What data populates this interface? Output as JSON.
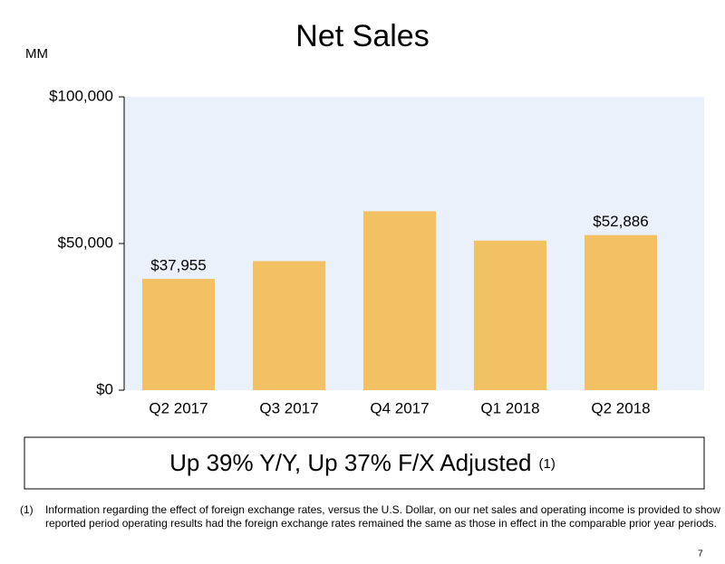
{
  "chart_data": {
    "type": "bar",
    "title": "Net Sales",
    "y_unit": "MM",
    "categories": [
      "Q2 2017",
      "Q3 2017",
      "Q4 2017",
      "Q1 2018",
      "Q2 2018"
    ],
    "values": [
      37955,
      44000,
      61000,
      51000,
      52886
    ],
    "value_labels": [
      "$37,955",
      null,
      null,
      null,
      "$52,886"
    ],
    "color": "#f1c164",
    "ylim": [
      0,
      100000
    ],
    "yticks": [
      {
        "value": 0,
        "label": "$0"
      },
      {
        "value": 50000,
        "label": "$50,000"
      },
      {
        "value": 100000,
        "label": "$100,000"
      }
    ],
    "callout": {
      "text": "Up 39% Y/Y, Up 37% F/X Adjusted",
      "note_ref": "(1)"
    },
    "footnote": {
      "marker": "(1)",
      "lines": [
        "Information regarding the effect of foreign exchange rates, versus the U.S. Dollar, on our net sales and operating income is provided to show",
        "reported period operating results had the foreign exchange rates remained the same as those in effect in the comparable prior year periods."
      ]
    },
    "page_number": "7"
  }
}
